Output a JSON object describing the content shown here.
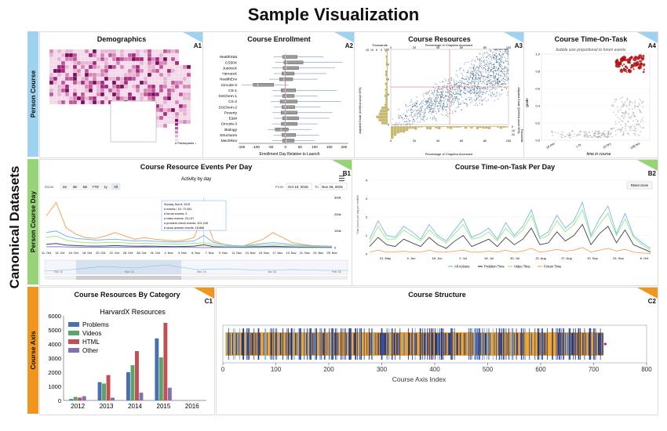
{
  "page": {
    "title": "Sample Visualization",
    "side_title": "Canonical Datasets",
    "rows": [
      {
        "label": "Person Course",
        "color": "#9dd3f1"
      },
      {
        "label": "Person Course Day",
        "color": "#97d476"
      },
      {
        "label": "Course Axis",
        "color": "#f0961f"
      }
    ]
  },
  "panels": {
    "a1": {
      "title": "Demographics",
      "badge": "A1",
      "legend_title": "# Participants ↓",
      "legend_items": [
        "100000",
        "50000",
        "20000",
        "10000",
        "5000",
        "2000"
      ]
    },
    "a2": {
      "title": "Course Enrollment",
      "badge": "A2",
      "xlabel": "Enrollment Day Relative to Launch"
    },
    "a3": {
      "title": "Course Resources",
      "badge": "A3",
      "xlabel": "Percentage of Chapters Accessed",
      "ylabel_left": "Adjusted Grade (Certified above 50%)",
      "ylabel_right": "Adjusted Grade (Certified above 50%)",
      "top_label": "Percentage of Chapters Accessed",
      "thousands_top": "Thousands",
      "thousands_right": "Thousands"
    },
    "a4": {
      "title": "Course Time-On-Task",
      "badge": "A4",
      "subtitle": "bubble size proportional to forum events",
      "xlabel": "time in course",
      "ylabel": "grade"
    },
    "b1": {
      "title": "Course Resource Events Per Day",
      "badge": "B1",
      "chart_title": "Activity by day",
      "zoom_label": "Zoom",
      "zoom_options": [
        "1m",
        "3m",
        "6m",
        "YTD",
        "1y",
        "All"
      ],
      "from_label": "From",
      "from_value": "Oct 10, 2015",
      "to_label": "To",
      "to_value": "Nov 26, 2015",
      "tooltip": {
        "date": "Sunday, Nov 8, 2015",
        "lines": [
          "# events / 10: 72,451",
          "# forum events: 0",
          "# video events: 29,137",
          "# problem check events: 201,249",
          "# show answer events: 16,856"
        ]
      },
      "nav_labels": [
        "Oct '12",
        "Nov '12",
        "Dec '12",
        "Jan '16",
        "Feb '16"
      ]
    },
    "b2": {
      "title": "Course Time-on-Task Per Day",
      "badge": "B2",
      "reset_label": "Reset zoom",
      "ylabel": "Time (hours) per day per certified"
    },
    "c1": {
      "title": "Course Resources By Category",
      "badge": "C1"
    },
    "c2": {
      "title": "Course Structure",
      "badge": "C2"
    }
  },
  "chart_data": [
    {
      "id": "a2",
      "type": "boxplot",
      "title": "Course Enrollment",
      "xlabel": "Enrollment Day Relative to Launch",
      "categories": [
        "HealthStat",
        "CS50X",
        "JusticeX",
        "HeroesX",
        "HealthEnv",
        "Circuits-2",
        "CS-1",
        "SSChem-1",
        "CS-2",
        "SSChem-2",
        "Poverty",
        "E&M",
        "Circuits-3",
        "Biology",
        "Structures",
        "MechRev"
      ],
      "xticks": [
        -150,
        -100,
        -50,
        0,
        50,
        100,
        150,
        200
      ],
      "xlim": [
        -160,
        215
      ],
      "boxes": [
        {
          "min": -40,
          "q1": -10,
          "median": 0,
          "q3": 40,
          "max": 130
        },
        {
          "min": -35,
          "q1": -5,
          "median": 5,
          "q3": 60,
          "max": 195
        },
        {
          "min": -45,
          "q1": -8,
          "median": 2,
          "q3": 45,
          "max": 170
        },
        {
          "min": -40,
          "q1": -12,
          "median": -2,
          "q3": 30,
          "max": 140
        },
        {
          "min": -55,
          "q1": -20,
          "median": -5,
          "q3": 25,
          "max": 110
        },
        {
          "min": -150,
          "q1": -110,
          "median": -95,
          "q3": -40,
          "max": 10
        },
        {
          "min": -45,
          "q1": -15,
          "median": 0,
          "q3": 35,
          "max": 175
        },
        {
          "min": -40,
          "q1": -10,
          "median": 2,
          "q3": 30,
          "max": 110
        },
        {
          "min": -50,
          "q1": -18,
          "median": 0,
          "q3": 40,
          "max": 190
        },
        {
          "min": -40,
          "q1": -12,
          "median": 0,
          "q3": 32,
          "max": 120
        },
        {
          "min": -45,
          "q1": -15,
          "median": 0,
          "q3": 40,
          "max": 160
        },
        {
          "min": -40,
          "q1": -10,
          "median": 3,
          "q3": 45,
          "max": 150
        },
        {
          "min": -45,
          "q1": -14,
          "median": 0,
          "q3": 40,
          "max": 110
        },
        {
          "min": -60,
          "q1": -35,
          "median": -15,
          "q3": 10,
          "max": 90
        },
        {
          "min": -40,
          "q1": -12,
          "median": 0,
          "q3": 35,
          "max": 115
        },
        {
          "min": -45,
          "q1": -10,
          "median": 2,
          "q3": 30,
          "max": 100
        }
      ]
    },
    {
      "id": "a3",
      "type": "scatter",
      "title": "Course Resources",
      "xlabel": "Percentage of Chapters Accessed",
      "xlim": [
        0,
        100
      ],
      "ylim": [
        0,
        100
      ],
      "xticks": [
        0,
        20,
        40,
        60,
        80,
        100
      ],
      "yticks": [
        0,
        20,
        40,
        60,
        80,
        100
      ],
      "top_hist_ticks": [
        15,
        10,
        5,
        0
      ],
      "right_hist_ticks": [
        0,
        10,
        20
      ]
    },
    {
      "id": "a4",
      "type": "scatter",
      "title": "Course Time-On-Task",
      "xlabel": "time in course",
      "ylabel": "grade",
      "xticks": [
        "10 min",
        "1 hr",
        "10 hrs",
        "100 hrs"
      ],
      "yticks": [
        0.0,
        0.2,
        0.4,
        0.6,
        0.8,
        1.0
      ],
      "ylim": [
        0,
        1
      ]
    },
    {
      "id": "b1",
      "type": "line",
      "title": "Activity by day",
      "xticks": [
        "11. Oct",
        "14. Oct",
        "16. Oct",
        "18. Oct",
        "20. Oct",
        "22. Oct",
        "25. Oct",
        "28. Oct",
        "31. Oct",
        "2. Nov",
        "4. Nov",
        "6. Nov",
        "7. Nov",
        "9. Nov",
        "11. Nov",
        "13. Nov",
        "15. Nov",
        "17. Nov",
        "19. Nov",
        "21. Nov",
        "23. Nov",
        "25. Nov"
      ],
      "yticks_right": [
        "0",
        "100k",
        "200k",
        "300k"
      ],
      "ylim": [
        0,
        300000
      ],
      "series": [
        {
          "name": "Problem check",
          "color": "#f7a35c",
          "values": [
            190000,
            270000,
            120000,
            80000,
            60000,
            55000,
            70000,
            90000,
            70000,
            50000,
            60000,
            50000,
            45000,
            40000,
            45000,
            60000,
            201249,
            40000,
            20000,
            10000,
            10000,
            30000,
            50000,
            90000,
            60000,
            30000,
            20000,
            12000,
            10000,
            8000
          ]
        },
        {
          "name": "Events / 10",
          "color": "#7cb5ec",
          "values": [
            90000,
            100000,
            70000,
            55000,
            50000,
            45000,
            48000,
            50000,
            45000,
            40000,
            42000,
            38000,
            35000,
            33000,
            36000,
            40000,
            72451,
            30000,
            20000,
            12000,
            10000,
            18000,
            25000,
            30000,
            25000,
            18000,
            14000,
            11000,
            9000,
            8000
          ]
        },
        {
          "name": "Video",
          "color": "#90ed7d",
          "values": [
            60000,
            70000,
            45000,
            35000,
            30000,
            28000,
            30000,
            32000,
            28000,
            25000,
            27000,
            24000,
            22000,
            20000,
            22000,
            26000,
            29137,
            18000,
            12000,
            8000,
            7000,
            12000,
            15000,
            18000,
            15000,
            11000,
            9000,
            7000,
            6000,
            5000
          ]
        },
        {
          "name": "Show answer",
          "color": "#434348",
          "values": [
            20000,
            25000,
            15000,
            12000,
            10000,
            9000,
            10000,
            12000,
            10000,
            8000,
            9000,
            8000,
            7000,
            6000,
            7000,
            9000,
            16856,
            6000,
            4000,
            3000,
            2500,
            5000,
            6000,
            8000,
            6000,
            4000,
            3000,
            2500,
            2000,
            1800
          ]
        },
        {
          "name": "Forum",
          "color": "#8085e9",
          "values": [
            5000,
            6000,
            4000,
            3000,
            2500,
            2000,
            2500,
            3000,
            2500,
            2000,
            2200,
            2000,
            1800,
            1500,
            1700,
            2000,
            0,
            1500,
            1000,
            800,
            600,
            900,
            1200,
            1500,
            1200,
            900,
            700,
            600,
            500,
            400
          ]
        }
      ]
    },
    {
      "id": "b2",
      "type": "line",
      "title": "Course Time-on-Task Per Day",
      "xticks": [
        "21. May",
        "4. Jun",
        "18. Jun",
        "2. Jul",
        "16. Jul",
        "30. Jul",
        "13. Aug",
        "27. Aug",
        "10. Sep",
        "24. Sep",
        "8. Oct"
      ],
      "yticks": [
        0,
        1,
        2,
        3,
        4
      ],
      "ylim": [
        0,
        4
      ],
      "series": [
        {
          "name": "All Actions",
          "color": "#7cb5ec",
          "values": [
            0.8,
            1.8,
            1.0,
            0.9,
            1.5,
            1.2,
            0.8,
            1.6,
            1.0,
            0.7,
            1.3,
            1.9,
            0.9,
            1.1,
            1.4,
            0.8,
            1.7,
            1.0,
            1.5,
            2.4,
            0.9,
            1.2,
            2.1,
            1.4,
            1.8,
            2.8,
            1.0,
            1.9,
            2.6,
            1.1,
            2.2,
            1.0,
            0.6,
            0.3
          ]
        },
        {
          "name": "Problem Time",
          "color": "#434348",
          "values": [
            0.4,
            0.9,
            0.5,
            0.4,
            0.8,
            0.6,
            0.4,
            0.9,
            0.5,
            0.3,
            0.7,
            1.0,
            0.4,
            0.6,
            0.8,
            0.4,
            0.9,
            0.5,
            0.8,
            1.4,
            0.5,
            0.6,
            1.2,
            0.7,
            1.0,
            1.6,
            0.5,
            1.1,
            1.5,
            0.6,
            1.3,
            0.5,
            0.3,
            0.1
          ]
        },
        {
          "name": "Video Time",
          "color": "#90ed7d",
          "values": [
            0.6,
            1.5,
            0.8,
            0.8,
            1.3,
            1.0,
            0.7,
            1.3,
            0.9,
            0.6,
            1.1,
            1.6,
            0.8,
            0.9,
            1.2,
            0.7,
            1.4,
            0.9,
            1.3,
            2.1,
            0.8,
            1.0,
            1.8,
            1.2,
            1.6,
            2.4,
            0.9,
            1.6,
            2.2,
            1.0,
            1.9,
            0.9,
            0.5,
            0.2
          ]
        },
        {
          "name": "Forum Time",
          "color": "#f7a35c",
          "values": [
            0.1,
            0.2,
            0.1,
            0.1,
            0.15,
            0.1,
            0.1,
            0.2,
            0.1,
            0.1,
            0.15,
            0.2,
            0.1,
            0.1,
            0.15,
            0.1,
            0.2,
            0.1,
            0.15,
            0.3,
            0.1,
            0.15,
            0.25,
            0.15,
            0.2,
            0.35,
            0.1,
            0.2,
            0.3,
            0.15,
            0.25,
            0.1,
            0.05,
            0.02
          ]
        }
      ]
    },
    {
      "id": "c1",
      "type": "bar",
      "title": "HarvardX Resources",
      "categories": [
        "2012",
        "2013",
        "2014",
        "2015",
        "2016"
      ],
      "ylim": [
        0,
        6000
      ],
      "yticks": [
        0,
        1000,
        2000,
        3000,
        4000,
        5000,
        6000
      ],
      "legend": "top-left",
      "series": [
        {
          "name": "Problems",
          "color": "#4a6fb0",
          "values": [
            100,
            1300,
            2000,
            4400,
            0
          ]
        },
        {
          "name": "Videos",
          "color": "#5aa469",
          "values": [
            250,
            1200,
            2500,
            3050,
            0
          ]
        },
        {
          "name": "HTML",
          "color": "#c44e52",
          "values": [
            200,
            1800,
            3500,
            5500,
            0
          ]
        },
        {
          "name": "Other",
          "color": "#8172b2",
          "values": [
            300,
            200,
            550,
            900,
            0
          ]
        }
      ]
    },
    {
      "id": "c2",
      "type": "timeline",
      "title": "Course Structure",
      "xlabel": "Course Axis Index",
      "xlim": [
        0,
        800
      ],
      "xticks": [
        0,
        100,
        200,
        300,
        400,
        500,
        600,
        700,
        800
      ]
    }
  ]
}
